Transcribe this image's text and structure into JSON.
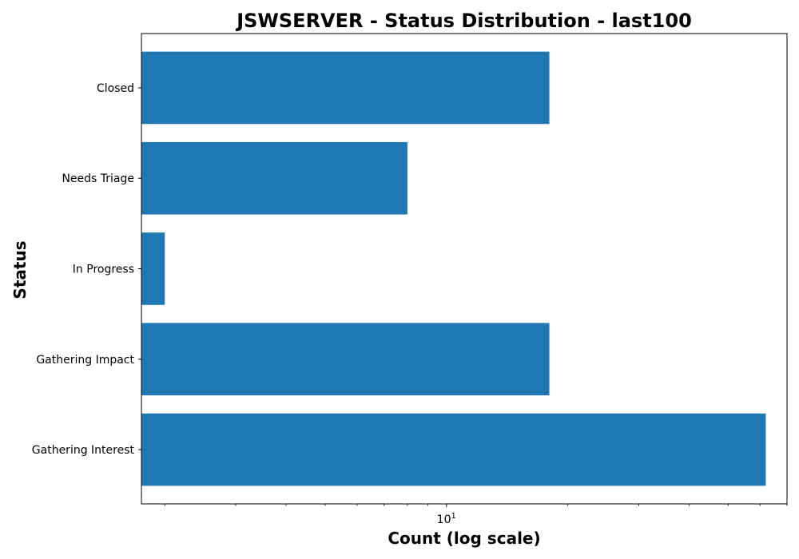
{
  "chart_data": {
    "type": "bar",
    "orientation": "horizontal",
    "title": "JSWSERVER - Status Distribution - last100",
    "xlabel": "Count (log scale)",
    "ylabel": "Status",
    "x_scale": "log",
    "xlim": [
      1.75,
      70
    ],
    "categories": [
      "Closed",
      "Needs Triage",
      "In Progress",
      "Gathering Impact",
      "Gathering Interest"
    ],
    "values": [
      18,
      8,
      2,
      18,
      62
    ],
    "x_major_ticks": [
      10
    ],
    "x_major_tick_label": {
      "base": "10",
      "exponent": "1"
    },
    "bar_color": "#1f77b4",
    "grid": false
  }
}
